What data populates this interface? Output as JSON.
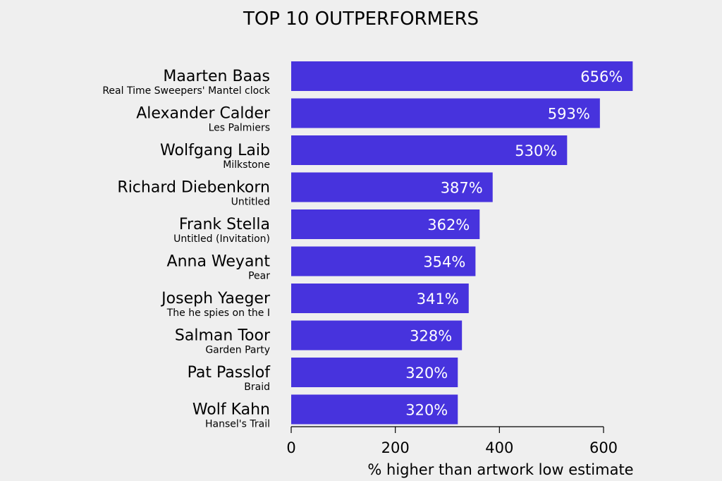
{
  "chart_data": {
    "type": "bar",
    "orientation": "horizontal",
    "title": "TOP 10 OUTPERFORMERS",
    "xlabel": "% higher than artwork low estimate",
    "xlim": [
      0,
      600
    ],
    "xticks": [
      0,
      200,
      400,
      600
    ],
    "grid": false,
    "bar_color": "#4733dd",
    "value_suffix": "%",
    "categories": [
      {
        "artist": "Maarten Baas",
        "work": "Real Time Sweepers' Mantel clock"
      },
      {
        "artist": "Alexander Calder",
        "work": "Les Palmiers"
      },
      {
        "artist": "Wolfgang Laib",
        "work": "Milkstone"
      },
      {
        "artist": "Richard Diebenkorn",
        "work": "Untitled"
      },
      {
        "artist": "Frank Stella",
        "work": "Untitled (Invitation)"
      },
      {
        "artist": "Anna Weyant",
        "work": "Pear"
      },
      {
        "artist": "Joseph Yaeger",
        "work": "The he spies on the I"
      },
      {
        "artist": "Salman Toor",
        "work": "Garden Party"
      },
      {
        "artist": "Pat Passlof",
        "work": "Braid"
      },
      {
        "artist": "Wolf Kahn",
        "work": "Hansel's Trail"
      }
    ],
    "values": [
      656,
      593,
      530,
      387,
      362,
      354,
      341,
      328,
      320,
      320
    ]
  }
}
